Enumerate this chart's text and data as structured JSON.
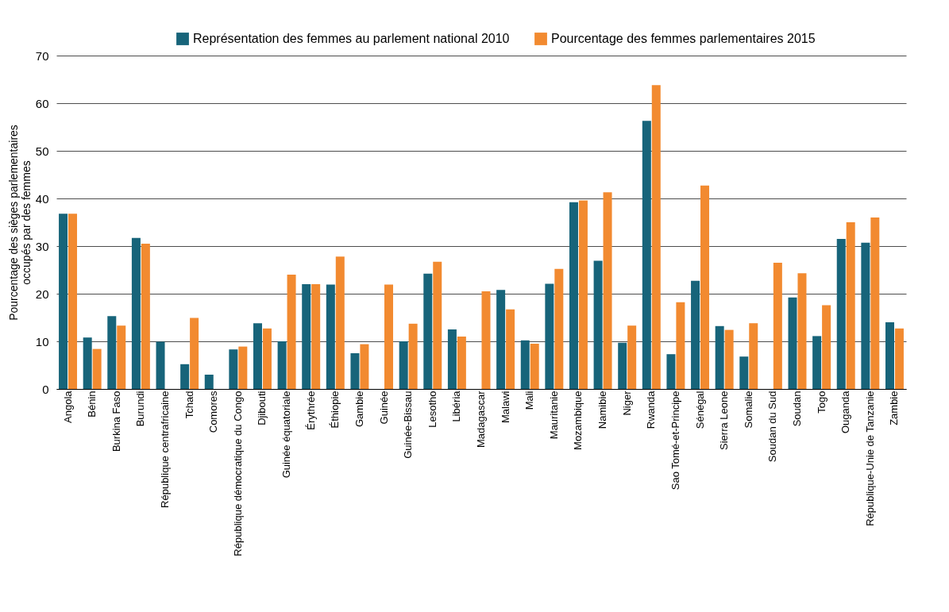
{
  "chart_data": {
    "type": "bar",
    "ylabel": "Pourcentage des sièges parlementaires occupés par des femmes",
    "categories": [
      "Angola",
      "Bénin",
      "Burkina Faso",
      "Burundi",
      "République centrafricaine",
      "Tchad",
      "Comores",
      "République démocratique du Congo",
      "Djibouti",
      "Guinée équatoriale",
      "Érythrée",
      "Éthiopie",
      "Gambie",
      "Guinée",
      "Guinée-Bissau",
      "Lesotho",
      "Libéria",
      "Madagascar",
      "Malawi",
      "Mali",
      "Mauritanie",
      "Mozambique",
      "Namibie",
      "Niger",
      "Rwanda",
      "Sao Tomé-et-Principe",
      "Sénégal",
      "Sierra Leone",
      "Somalie",
      "Soudan du Sud",
      "Soudan",
      "Togo",
      "Ouganda",
      "République-Unie de Tanzanie",
      "Zambie"
    ],
    "series": [
      {
        "name": "Représentation des femmes au parlement national 2010",
        "color": "#17647a",
        "values": [
          36.8,
          10.8,
          15.3,
          31.7,
          9.9,
          5.2,
          3.0,
          8.3,
          13.8,
          10.0,
          22.0,
          21.9,
          7.5,
          null,
          10.0,
          24.2,
          12.5,
          null,
          20.8,
          10.2,
          22.1,
          39.2,
          26.9,
          9.7,
          56.3,
          7.3,
          22.7,
          13.2,
          6.8,
          null,
          19.2,
          11.1,
          31.5,
          30.7,
          14.0
        ]
      },
      {
        "name": "Pourcentage des femmes parlementaires 2015",
        "color": "#f28a30",
        "values": [
          36.8,
          8.4,
          13.3,
          30.5,
          null,
          14.9,
          null,
          8.9,
          12.7,
          24.0,
          22.0,
          27.8,
          9.4,
          21.9,
          13.7,
          26.7,
          11.0,
          20.5,
          16.7,
          9.5,
          25.2,
          39.6,
          41.3,
          13.3,
          63.8,
          18.2,
          42.7,
          12.4,
          13.8,
          26.5,
          24.3,
          17.6,
          35.0,
          36.0,
          12.7
        ]
      }
    ],
    "ylim": [
      0,
      70
    ],
    "yticks": [
      0,
      10,
      20,
      30,
      40,
      50,
      60,
      70
    ],
    "grid": "y",
    "legend": "top right"
  }
}
